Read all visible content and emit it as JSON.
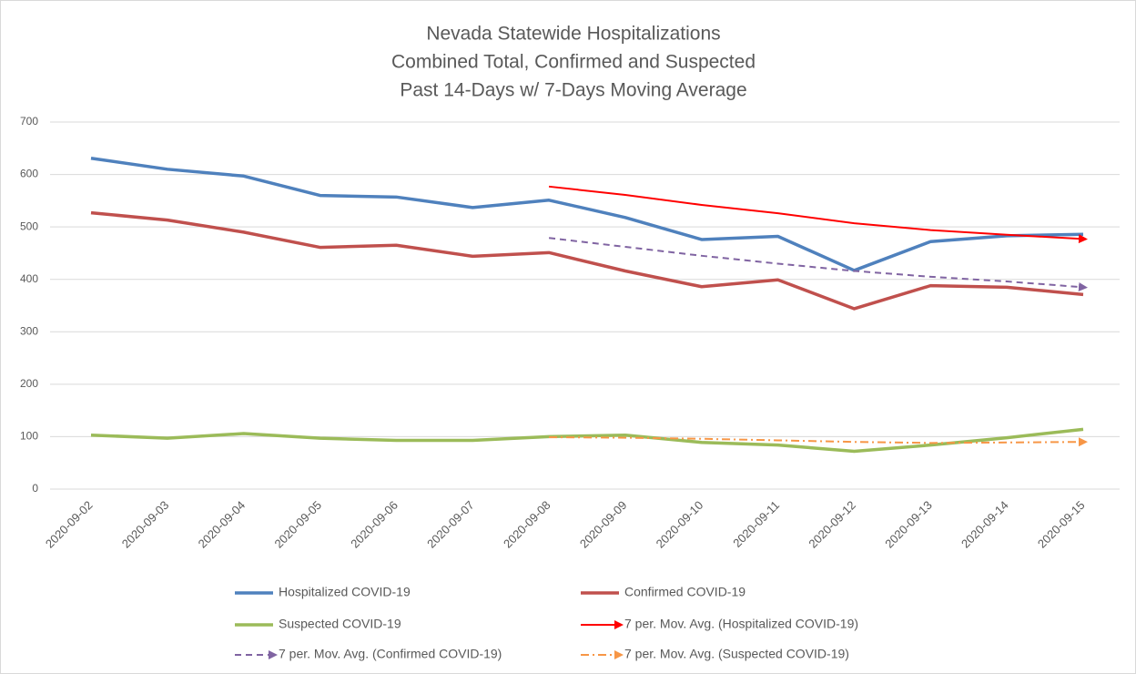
{
  "chart_data": {
    "type": "line",
    "title": [
      "Nevada Statewide Hospitalizations",
      "Combined Total, Confirmed and Suspected",
      "Past 14-Days w/ 7-Days Moving Average"
    ],
    "categories": [
      "2020-09-02",
      "2020-09-03",
      "2020-09-04",
      "2020-09-05",
      "2020-09-06",
      "2020-09-07",
      "2020-09-08",
      "2020-09-09",
      "2020-09-10",
      "2020-09-11",
      "2020-09-12",
      "2020-09-13",
      "2020-09-14",
      "2020-09-15"
    ],
    "series": [
      {
        "name": "Hospitalized COVID-19",
        "color": "#4f81bd",
        "style": "solid",
        "values": [
          631,
          610,
          597,
          560,
          557,
          537,
          551,
          518,
          476,
          482,
          417,
          472,
          483,
          486
        ]
      },
      {
        "name": "Confirmed COVID-19",
        "color": "#c0504d",
        "style": "solid",
        "values": [
          527,
          513,
          490,
          461,
          465,
          444,
          451,
          416,
          386,
          399,
          344,
          388,
          385,
          371
        ]
      },
      {
        "name": "Suspected COVID-19",
        "color": "#9bbb59",
        "style": "solid",
        "values": [
          103,
          97,
          106,
          97,
          93,
          93,
          100,
          103,
          89,
          84,
          72,
          84,
          98,
          114
        ]
      },
      {
        "name": "7 per. Mov. Avg. (Hospitalized COVID-19)",
        "color": "#ff0000",
        "style": "thin-arrow",
        "values": [
          null,
          null,
          null,
          null,
          null,
          null,
          577,
          561,
          542,
          526,
          507,
          494,
          485,
          477
        ]
      },
      {
        "name": "7 per. Mov. Avg. (Confirmed COVID-19)",
        "color": "#8064a2",
        "style": "dashed-arrow",
        "values": [
          null,
          null,
          null,
          null,
          null,
          null,
          479,
          462,
          445,
          430,
          416,
          405,
          396,
          385
        ]
      },
      {
        "name": "7 per. Mov. Avg. (Suspected COVID-19)",
        "color": "#f79646",
        "style": "dashdot-arrow",
        "values": [
          null,
          null,
          null,
          null,
          null,
          null,
          99,
          98,
          96,
          93,
          90,
          88,
          89,
          90
        ]
      }
    ],
    "ylim": [
      0,
      700
    ],
    "yticks": [
      0,
      100,
      200,
      300,
      400,
      500,
      600,
      700
    ],
    "grid": true,
    "legend": "bottom"
  }
}
